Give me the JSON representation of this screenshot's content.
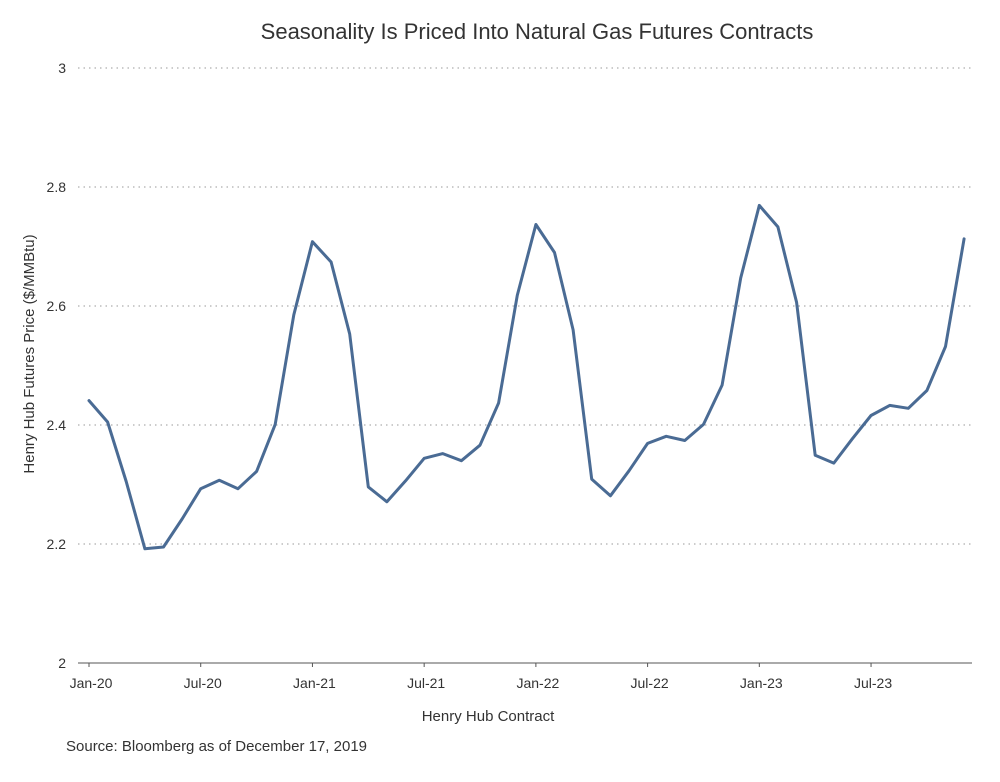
{
  "chart_data": {
    "type": "line",
    "title": "Seasonality Is Priced Into Natural Gas Futures Contracts",
    "xlabel": "Henry Hub Contract",
    "ylabel": "Henry Hub Futures Price ($/MMBtu)",
    "ylim": [
      2,
      3
    ],
    "yticks": [
      "2",
      "2.2",
      "2.4",
      "2.6",
      "2.8",
      "3"
    ],
    "xticks": [
      "Jan-20",
      "Jul-20",
      "Jan-21",
      "Jul-21",
      "Jan-22",
      "Jul-22",
      "Jan-23",
      "Jul-23"
    ],
    "grid": "horizontal dotted",
    "line_color": "#4a6b94",
    "x": [
      "Jan-20",
      "Feb-20",
      "Mar-20",
      "Apr-20",
      "May-20",
      "Jun-20",
      "Jul-20",
      "Aug-20",
      "Sep-20",
      "Oct-20",
      "Nov-20",
      "Dec-20",
      "Jan-21",
      "Feb-21",
      "Mar-21",
      "Apr-21",
      "May-21",
      "Jun-21",
      "Jul-21",
      "Aug-21",
      "Sep-21",
      "Oct-21",
      "Nov-21",
      "Dec-21",
      "Jan-22",
      "Feb-22",
      "Mar-22",
      "Apr-22",
      "May-22",
      "Jun-22",
      "Jul-22",
      "Aug-22",
      "Sep-22",
      "Oct-22",
      "Nov-22",
      "Dec-22",
      "Jan-23",
      "Feb-23",
      "Mar-23",
      "Apr-23",
      "May-23",
      "Jun-23",
      "Jul-23",
      "Aug-23",
      "Sep-23",
      "Oct-23",
      "Nov-23",
      "Dec-23"
    ],
    "series": [
      {
        "values": [
          2.441,
          2.405,
          2.305,
          2.192,
          2.195,
          2.242,
          2.293,
          2.307,
          2.293,
          2.322,
          2.401,
          2.585,
          2.708,
          2.674,
          2.553,
          2.296,
          2.271,
          2.306,
          2.344,
          2.352,
          2.34,
          2.366,
          2.437,
          2.618,
          2.737,
          2.69,
          2.56,
          2.309,
          2.281,
          2.323,
          2.369,
          2.381,
          2.374,
          2.401,
          2.467,
          2.647,
          2.769,
          2.733,
          2.606,
          2.349,
          2.336,
          2.377,
          2.416,
          2.433,
          2.428,
          2.458,
          2.532,
          2.713
        ]
      }
    ]
  },
  "source": "Source: Bloomberg as of December 17, 2019"
}
